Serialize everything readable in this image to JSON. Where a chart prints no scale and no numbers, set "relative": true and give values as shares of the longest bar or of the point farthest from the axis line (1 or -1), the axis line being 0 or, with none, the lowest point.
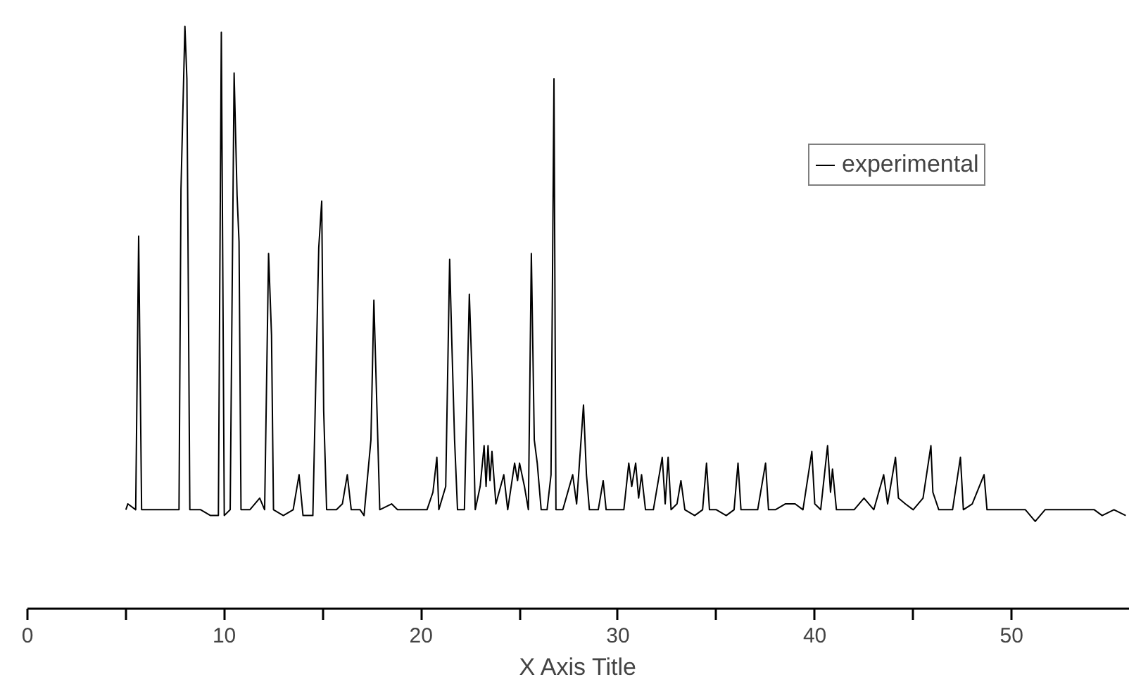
{
  "chart_data": {
    "type": "line",
    "relative": true,
    "xlabel": "X Axis Title",
    "xlim": [
      0,
      56
    ],
    "xticks": [
      0,
      {
        "value": 5,
        "label": null
      },
      10,
      {
        "value": 15,
        "label": null
      },
      20,
      {
        "value": 25,
        "label": null
      },
      30,
      {
        "value": 35,
        "label": null
      },
      40,
      {
        "value": 45,
        "label": null
      },
      50
    ],
    "tick_labels": "x",
    "grid": false,
    "legend": "top right",
    "marker": "none",
    "line_style": "solid",
    "series": [
      {
        "name": "experimental",
        "color": "#000000",
        "x": [
          5.0,
          5.1,
          5.5,
          5.65,
          5.8,
          6.3,
          6.8,
          7.3,
          7.7,
          7.8,
          8.0,
          8.1,
          8.25,
          8.8,
          9.3,
          9.7,
          9.85,
          10.0,
          10.3,
          10.5,
          10.65,
          10.75,
          10.85,
          11.3,
          11.8,
          12.05,
          12.25,
          12.4,
          12.5,
          13.0,
          13.5,
          13.8,
          14.0,
          14.5,
          14.8,
          14.95,
          15.05,
          15.2,
          15.7,
          16.0,
          16.25,
          16.45,
          16.9,
          17.1,
          17.45,
          17.6,
          17.75,
          17.9,
          18.5,
          18.8,
          19.3,
          19.8,
          20.3,
          20.6,
          20.8,
          20.9,
          21.25,
          21.45,
          21.55,
          21.7,
          21.85,
          22.2,
          22.45,
          22.6,
          22.75,
          23.0,
          23.2,
          23.3,
          23.4,
          23.5,
          23.6,
          23.8,
          24.2,
          24.4,
          24.75,
          24.9,
          25.0,
          25.25,
          25.45,
          25.6,
          25.75,
          25.9,
          26.1,
          26.4,
          26.6,
          26.75,
          26.85,
          27.2,
          27.45,
          27.7,
          27.9,
          28.25,
          28.4,
          28.55,
          29.0,
          29.25,
          29.4,
          29.9,
          30.3,
          30.55,
          30.7,
          30.9,
          31.05,
          31.2,
          31.4,
          31.8,
          32.25,
          32.4,
          32.55,
          32.7,
          33.0,
          33.2,
          33.4,
          33.9,
          34.3,
          34.5,
          34.65,
          35.0,
          35.5,
          35.9,
          36.1,
          36.25,
          36.7,
          37.1,
          37.5,
          37.65,
          38.0,
          38.5,
          39.0,
          39.4,
          39.85,
          40.0,
          40.3,
          40.65,
          40.8,
          40.9,
          41.1,
          41.5,
          42.0,
          42.5,
          43.0,
          43.5,
          43.7,
          44.1,
          44.25,
          44.6,
          45.0,
          45.5,
          45.9,
          46.0,
          46.3,
          46.7,
          47.0,
          47.4,
          47.55,
          48.0,
          48.6,
          48.75,
          49.2,
          49.7,
          50.2,
          50.7,
          51.2,
          51.7,
          52.2,
          52.7,
          53.2,
          53.7,
          54.2,
          54.6,
          55.2,
          55.8
        ],
        "values": [
          0.17,
          0.18,
          0.17,
          0.64,
          0.17,
          0.17,
          0.17,
          0.17,
          0.17,
          0.72,
          1.0,
          0.91,
          0.17,
          0.17,
          0.16,
          0.16,
          0.99,
          0.16,
          0.17,
          0.92,
          0.71,
          0.63,
          0.17,
          0.17,
          0.19,
          0.17,
          0.61,
          0.47,
          0.17,
          0.16,
          0.17,
          0.23,
          0.16,
          0.16,
          0.62,
          0.7,
          0.34,
          0.17,
          0.17,
          0.18,
          0.23,
          0.17,
          0.17,
          0.16,
          0.29,
          0.53,
          0.35,
          0.17,
          0.18,
          0.17,
          0.17,
          0.17,
          0.17,
          0.2,
          0.26,
          0.17,
          0.21,
          0.6,
          0.47,
          0.29,
          0.17,
          0.17,
          0.54,
          0.39,
          0.17,
          0.21,
          0.28,
          0.21,
          0.28,
          0.22,
          0.27,
          0.18,
          0.23,
          0.17,
          0.25,
          0.22,
          0.25,
          0.21,
          0.17,
          0.61,
          0.29,
          0.25,
          0.17,
          0.17,
          0.23,
          0.91,
          0.17,
          0.17,
          0.2,
          0.23,
          0.18,
          0.35,
          0.23,
          0.17,
          0.17,
          0.22,
          0.17,
          0.17,
          0.17,
          0.25,
          0.21,
          0.25,
          0.19,
          0.23,
          0.17,
          0.17,
          0.26,
          0.18,
          0.26,
          0.17,
          0.18,
          0.22,
          0.17,
          0.16,
          0.17,
          0.25,
          0.17,
          0.17,
          0.16,
          0.17,
          0.25,
          0.17,
          0.17,
          0.17,
          0.25,
          0.17,
          0.17,
          0.18,
          0.18,
          0.17,
          0.27,
          0.18,
          0.17,
          0.28,
          0.2,
          0.24,
          0.17,
          0.17,
          0.17,
          0.19,
          0.17,
          0.23,
          0.18,
          0.26,
          0.19,
          0.18,
          0.17,
          0.19,
          0.28,
          0.2,
          0.17,
          0.17,
          0.17,
          0.26,
          0.17,
          0.18,
          0.23,
          0.17,
          0.17,
          0.17,
          0.17,
          0.17,
          0.15,
          0.17,
          0.17,
          0.17,
          0.17,
          0.17,
          0.17,
          0.16,
          0.17,
          0.16
        ]
      }
    ]
  }
}
